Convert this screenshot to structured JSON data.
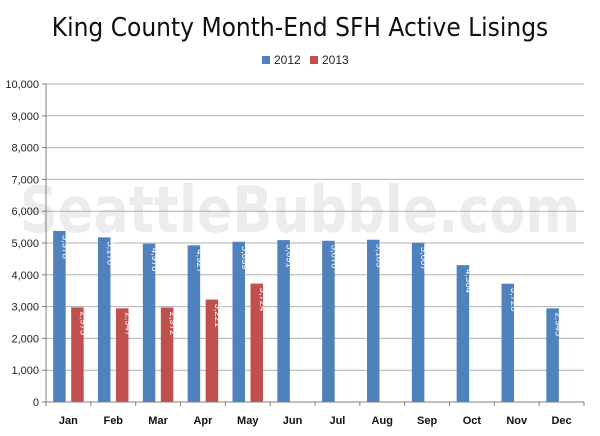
{
  "watermark": "SeattleBubble.com",
  "chart_data": {
    "type": "bar",
    "title": "King County Month-End SFH Active Lisings",
    "xlabel": "",
    "ylabel": "",
    "ylim": [
      0,
      10000
    ],
    "yticks": [
      "0",
      "1,000",
      "2,000",
      "3,000",
      "4,000",
      "5,000",
      "6,000",
      "7,000",
      "8,000",
      "9,000",
      "10,000"
    ],
    "grid": true,
    "legend_position": "top-center",
    "categories": [
      "Jan",
      "Feb",
      "Mar",
      "Apr",
      "May",
      "Jun",
      "Jul",
      "Aug",
      "Sep",
      "Oct",
      "Nov",
      "Dec"
    ],
    "series": [
      {
        "name": "2012",
        "color": "#4f81bd",
        "values": [
          5378,
          5178,
          4978,
          4927,
          5039,
          5091,
          5070,
          5103,
          5007,
          4304,
          3720,
          2945
        ],
        "labels": [
          "5,378",
          "5,178",
          "4,978",
          "4,927",
          "5,039",
          "5,091",
          "5,070",
          "5,103",
          "5,007",
          "4,304",
          "3,720",
          "2,945"
        ]
      },
      {
        "name": "2013",
        "color": "#c0504d",
        "values": [
          2975,
          2947,
          2972,
          3221,
          3724,
          null,
          null,
          null,
          null,
          null,
          null,
          null
        ],
        "labels": [
          "2,975",
          "2,947",
          "2,972",
          "3,221",
          "3,724",
          null,
          null,
          null,
          null,
          null,
          null,
          null
        ]
      }
    ]
  }
}
